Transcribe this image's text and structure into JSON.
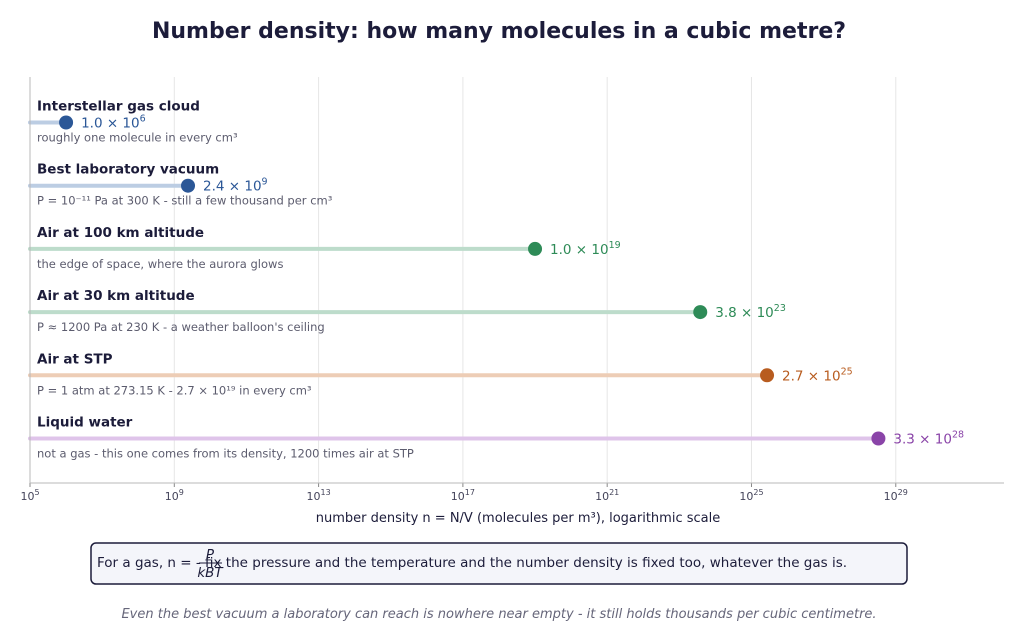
{
  "chart_data": {
    "type": "dot",
    "title": "Number density: how many molecules in a cubic metre?",
    "xlabel": "number density  n = N/V  (molecules per m³),  logarithmic scale",
    "x_scale": "log",
    "xlim": [
      100000.0,
      1e+32
    ],
    "x_ticks": [
      {
        "value": 100000.0,
        "base": "10",
        "exp": "5"
      },
      {
        "value": 1000000000.0,
        "base": "10",
        "exp": "9"
      },
      {
        "value": 10000000000000.0,
        "base": "10",
        "exp": "13"
      },
      {
        "value": 1e+17,
        "base": "10",
        "exp": "17"
      },
      {
        "value": 1e+21,
        "base": "10",
        "exp": "21"
      },
      {
        "value": 1e+25,
        "base": "10",
        "exp": "25"
      },
      {
        "value": 1e+29,
        "base": "10",
        "exp": "29"
      }
    ],
    "grid": true,
    "rows": [
      {
        "label": "Interstellar gas cloud",
        "value": 1000000.0,
        "value_mantissa": "1.0 × 10",
        "value_exp": "6",
        "note": "roughly one molecule in every cm³",
        "color": "#2b5797",
        "bar_color": "#bccde3"
      },
      {
        "label": "Best laboratory vacuum",
        "value": 2400000000.0,
        "value_mantissa": "2.4 × 10",
        "value_exp": "9",
        "note": "P = 10⁻¹¹ Pa at 300 K  -  still a few thousand per cm³",
        "color": "#2b5797",
        "bar_color": "#bccde3"
      },
      {
        "label": "Air at 100 km altitude",
        "value": 1e+19,
        "value_mantissa": "1.0 × 10",
        "value_exp": "19",
        "note": "the edge of space, where the aurora glows",
        "color": "#2e8b57",
        "bar_color": "#bddccb"
      },
      {
        "label": "Air at 30 km altitude",
        "value": 3.8e+23,
        "value_mantissa": "3.8 × 10",
        "value_exp": "23",
        "note": "P ≈ 1200 Pa at 230 K  -  a weather balloon's ceiling",
        "color": "#2e8b57",
        "bar_color": "#bddccb"
      },
      {
        "label": "Air at STP",
        "value": 2.7e+25,
        "value_mantissa": "2.7 × 10",
        "value_exp": "25",
        "note": "P = 1 atm at 273.15 K  -  2.7 × 10¹⁹ in every cm³",
        "color": "#b85c1f",
        "bar_color": "#edcdb6"
      },
      {
        "label": "Liquid water",
        "value": 3.3e+28,
        "value_mantissa": "3.3 × 10",
        "value_exp": "28",
        "note": "not a gas - this one comes from its density, 1200 times air at STP",
        "color": "#8a44a8",
        "bar_color": "#dfc4ea"
      }
    ]
  },
  "formula_box": {
    "prefix": "For a gas,  n = ",
    "numerator": "P",
    "denominator": "kBT",
    "suffix": "  -  fix the pressure and the temperature and the number density is fixed too, whatever the gas is."
  },
  "footnote": "Even the best vacuum a laboratory can reach is nowhere near empty - it still holds thousands per cubic centimetre."
}
